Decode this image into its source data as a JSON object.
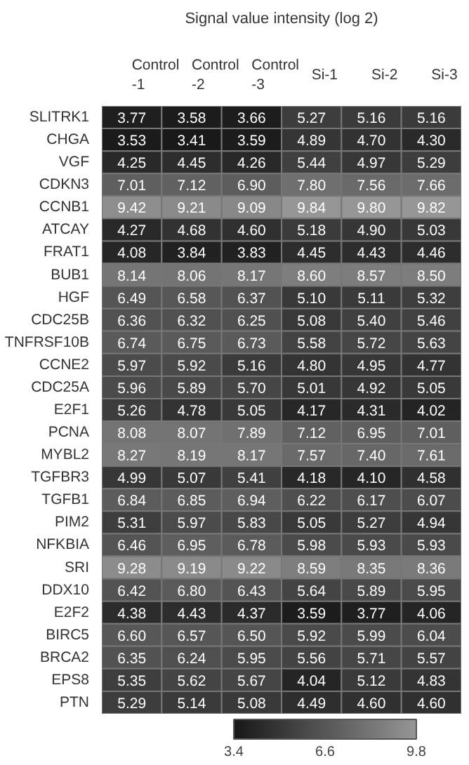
{
  "chart_data": {
    "type": "heatmap",
    "title": "Signal value intensity (log 2)",
    "categories": [
      "Control\n-1",
      "Control\n-2",
      "Control\n-3",
      "Si-1",
      "Si-2",
      "Si-3"
    ],
    "y_categories": [
      "SLITRK1",
      "CHGA",
      "VGF",
      "CDKN3",
      "CCNB1",
      "ATCAY",
      "FRAT1",
      "BUB1",
      "HGF",
      "CDC25B",
      "TNFRSF10B",
      "CCNE2",
      "CDC25A",
      "E2F1",
      "PCNA",
      "MYBL2",
      "TGFBR3",
      "TGFB1",
      "PIM2",
      "NFKBIA",
      "SRI",
      "DDX10",
      "E2F2",
      "BIRC5",
      "BRCA2",
      "EPS8",
      "PTN"
    ],
    "cells": [
      [
        3.77,
        3.58,
        3.66,
        5.27,
        5.16,
        5.16
      ],
      [
        3.53,
        3.41,
        3.59,
        4.89,
        4.7,
        4.3
      ],
      [
        4.25,
        4.45,
        4.26,
        5.44,
        4.97,
        5.29
      ],
      [
        7.01,
        7.12,
        6.9,
        7.8,
        7.56,
        7.66
      ],
      [
        9.42,
        9.21,
        9.09,
        9.84,
        9.8,
        9.82
      ],
      [
        4.27,
        4.68,
        4.6,
        5.18,
        4.9,
        5.03
      ],
      [
        4.08,
        3.84,
        3.83,
        4.45,
        4.43,
        4.46
      ],
      [
        8.14,
        8.06,
        8.17,
        8.6,
        8.57,
        8.5
      ],
      [
        6.49,
        6.58,
        6.37,
        5.1,
        5.11,
        5.32
      ],
      [
        6.36,
        6.32,
        6.25,
        5.08,
        5.4,
        5.46
      ],
      [
        6.74,
        6.75,
        6.73,
        5.58,
        5.72,
        5.63
      ],
      [
        5.97,
        5.92,
        5.16,
        4.8,
        4.95,
        4.77
      ],
      [
        5.96,
        5.89,
        5.7,
        5.01,
        4.92,
        5.05
      ],
      [
        5.26,
        4.78,
        5.05,
        4.17,
        4.31,
        4.02
      ],
      [
        8.08,
        8.07,
        7.89,
        7.12,
        6.95,
        7.01
      ],
      [
        8.27,
        8.19,
        8.17,
        7.57,
        7.4,
        7.61
      ],
      [
        4.99,
        5.07,
        5.41,
        4.18,
        4.1,
        4.58
      ],
      [
        6.84,
        6.85,
        6.94,
        6.22,
        6.17,
        6.07
      ],
      [
        5.31,
        5.97,
        5.83,
        5.05,
        5.27,
        4.94
      ],
      [
        6.46,
        6.95,
        6.78,
        5.98,
        5.93,
        5.93
      ],
      [
        9.28,
        9.19,
        9.22,
        8.59,
        8.35,
        8.36
      ],
      [
        6.42,
        6.8,
        6.43,
        5.64,
        5.89,
        5.95
      ],
      [
        4.38,
        4.43,
        4.37,
        3.59,
        3.77,
        4.06
      ],
      [
        6.6,
        6.57,
        6.5,
        5.92,
        5.99,
        6.04
      ],
      [
        6.35,
        6.24,
        5.95,
        5.56,
        5.71,
        5.57
      ],
      [
        5.35,
        5.62,
        5.67,
        4.04,
        5.12,
        4.83
      ],
      [
        5.29,
        5.14,
        5.08,
        4.49,
        4.6,
        4.6
      ]
    ],
    "cell_labels": [
      [
        "3.77",
        "3.58",
        "3.66",
        "5.27",
        "5.16",
        "5.16"
      ],
      [
        "3.53",
        "3.41",
        "3.59",
        "4.89",
        "4.70",
        "4.30"
      ],
      [
        "4.25",
        "4.45",
        "4.26",
        "5.44",
        "4.97",
        "5.29"
      ],
      [
        "7.01",
        "7.12",
        "6.90",
        "7.80",
        "7.56",
        "7.66"
      ],
      [
        "9.42",
        "9.21",
        "9.09",
        "9.84",
        "9.80",
        "9.82"
      ],
      [
        "4.27",
        "4.68",
        "4.60",
        "5.18",
        "4.90",
        "5.03"
      ],
      [
        "4.08",
        "3.84",
        "3.83",
        "4.45",
        "4.43",
        "4.46"
      ],
      [
        "8.14",
        "8.06",
        "8.17",
        "8.60",
        "8.57",
        "8.50"
      ],
      [
        "6.49",
        "6.58",
        "6.37",
        "5.10",
        "5.11",
        "5.32"
      ],
      [
        "6.36",
        "6.32",
        "6.25",
        "5.08",
        "5.40",
        "5.46"
      ],
      [
        "6.74",
        "6.75",
        "6.73",
        "5.58",
        "5.72",
        "5.63"
      ],
      [
        "5.97",
        "5.92",
        "5.16",
        "4.80",
        "4.95",
        "4.77"
      ],
      [
        "5.96",
        "5.89",
        "5.70",
        "5.01",
        "4.92",
        "5.05"
      ],
      [
        "5.26",
        "4.78",
        "5.05",
        "4.17",
        "4.31",
        "4.02"
      ],
      [
        "8.08",
        "8.07",
        "7.89",
        "7.12",
        "6.95",
        "7.01"
      ],
      [
        "8.27",
        "8.19",
        "8.17",
        "7.57",
        "7.40",
        "7.61"
      ],
      [
        "4.99",
        "5.07",
        "5.41",
        "4.18",
        "4.10",
        "4.58"
      ],
      [
        "6.84",
        "6.85",
        "6.94",
        "6.22",
        "6.17",
        "6.07"
      ],
      [
        "5.31",
        "5.97",
        "5.83",
        "5.05",
        "5.27",
        "4.94"
      ],
      [
        "6.46",
        "6.95",
        "6.78",
        "5.98",
        "5.93",
        "5.93"
      ],
      [
        "9.28",
        "9.19",
        "9.22",
        "8.59",
        "8.35",
        "8.36"
      ],
      [
        "6.42",
        "6.80",
        "6.43",
        "5.64",
        "5.89",
        "5.95"
      ],
      [
        "4.38",
        "4.43",
        "4.37",
        "3.59",
        "3.77",
        "4.06"
      ],
      [
        "6.60",
        "6.57",
        "6.50",
        "5.92",
        "5.99",
        "6.04"
      ],
      [
        "6.35",
        "6.24",
        "5.95",
        "5.56",
        "5.71",
        "5.57"
      ],
      [
        "5.35",
        "5.62",
        "5.67",
        "4.04",
        "5.12",
        "4.83"
      ],
      [
        "5.29",
        "5.14",
        "5.08",
        "4.49",
        "4.60",
        "4.60"
      ]
    ],
    "clim": [
      3.4,
      9.8
    ],
    "cticks": [
      3.4,
      6.6,
      9.8
    ]
  }
}
